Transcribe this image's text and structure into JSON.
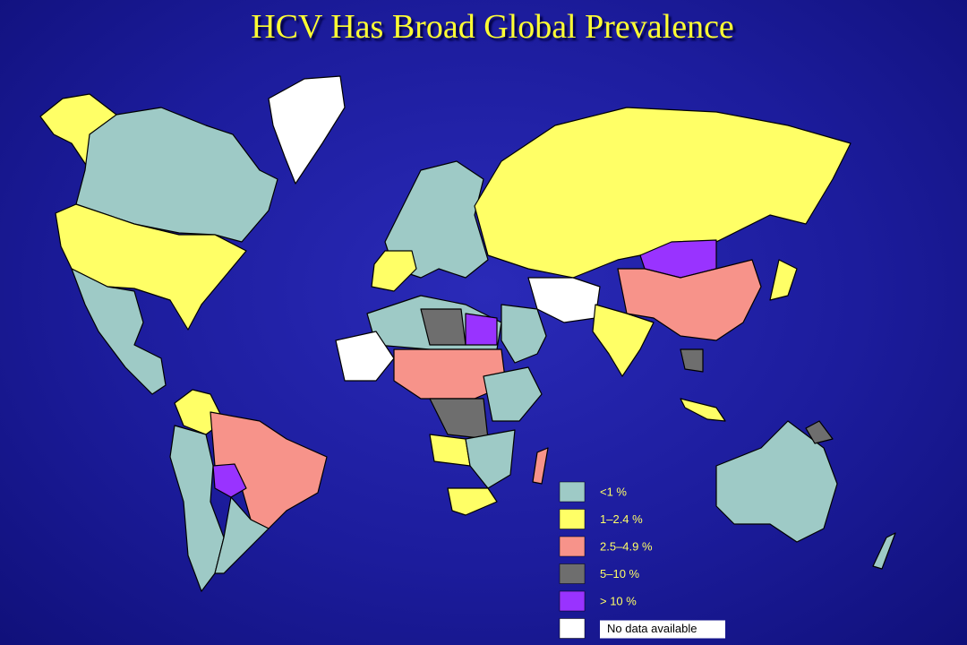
{
  "title": "HCV Has Broad Global Prevalence",
  "legend": [
    {
      "label": "<1 %",
      "color": "#9ecac6"
    },
    {
      "label": "1–2.4 %",
      "color": "#ffff66"
    },
    {
      "label": "2.5–4.9 %",
      "color": "#f7938a"
    },
    {
      "label": "5–10 %",
      "color": "#6e6e6e"
    },
    {
      "label": "> 10 %",
      "color": "#9933ff"
    },
    {
      "label": "No data available",
      "color": "#ffffff"
    }
  ]
}
